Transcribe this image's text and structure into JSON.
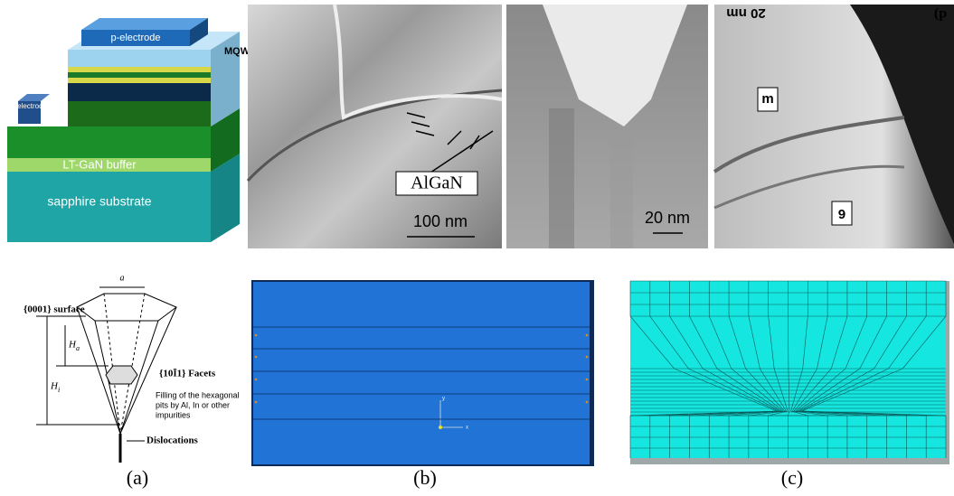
{
  "figure": {
    "led": {
      "p_electrode": "p-electrode",
      "mqw": "MQW",
      "n_electrode": "n-electrode",
      "buffer": "LT-GaN buffer",
      "substrate": "sapphire substrate"
    },
    "tem": {
      "algan": "AlGaN",
      "scale_left": "100 nm",
      "scale_middle": "20 nm",
      "scale_right": "20 nm",
      "corner_right": "(p",
      "arrow_upper": "m",
      "arrow_lower": "6"
    },
    "pit": {
      "width": "a",
      "surface": "{0001} surface",
      "height_a": "H",
      "height_a_sub": "a",
      "height_i": "H",
      "height_i_sub": "i",
      "facets": "{10Ī1} Facets",
      "filling": [
        "Filling of the hexagonal",
        "pits by Al, In or other",
        "impurities"
      ],
      "dislocations": "Dislocations"
    },
    "model": {
      "axis_y": "y",
      "axis_x": "x"
    },
    "labels": {
      "a": "(a)",
      "b": "(b)",
      "c": "(c)"
    }
  }
}
